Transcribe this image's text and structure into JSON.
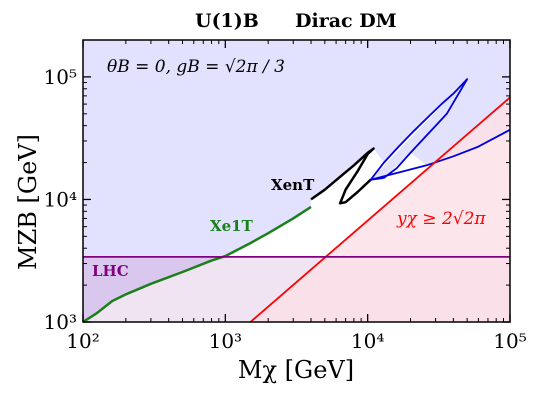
{
  "chart_data": {
    "type": "line",
    "title_left": "U(1)B",
    "title_right": "Dirac DM",
    "xlabel": "Mχ [GeV]",
    "ylabel": "MZB [GeV]",
    "xscale": "log",
    "yscale": "log",
    "xlim": [
      100,
      100000
    ],
    "ylim": [
      1000,
      200000
    ],
    "x_ticks": [
      {
        "value": 100,
        "label": "10²"
      },
      {
        "value": 1000,
        "label": "10³"
      },
      {
        "value": 10000,
        "label": "10⁴"
      },
      {
        "value": 100000,
        "label": "10⁵"
      }
    ],
    "y_ticks": [
      {
        "value": 1000,
        "label": "10³"
      },
      {
        "value": 10000,
        "label": "10⁴"
      },
      {
        "value": 100000,
        "label": "10⁵"
      }
    ],
    "grid": false,
    "annotation_params": "θB = 0,   gB = √2π / 3",
    "colors": {
      "region_blue": "#e2e2fe",
      "region_pink": "#f1e4f2",
      "region_lhc": "#d9c7ee",
      "region_red": "#fbe0e8",
      "line_red": "#ff0000",
      "line_lhc": "#800080",
      "line_green": "#1a801a",
      "line_black": "#000000",
      "line_blue": "#0000dd"
    },
    "regions": [
      {
        "name": "excluded-upper",
        "color": "#e2e2fe"
      },
      {
        "name": "LHC",
        "color": "#d9c7ee"
      },
      {
        "name": "perturbativity",
        "color": "#fbe0e8"
      }
    ],
    "series": [
      {
        "name": "Xe1T",
        "label_value": "Xe1T",
        "color": "#1a801a",
        "x": [
          100,
          125,
          160,
          200,
          300,
          500,
          800,
          1000,
          1500,
          2000,
          3000,
          4000
        ],
        "y": [
          1000,
          1180,
          1480,
          1680,
          2050,
          2560,
          3170,
          3450,
          4400,
          5300,
          7000,
          8700
        ]
      },
      {
        "name": "XenT",
        "label_value": "XenT",
        "color": "#000000",
        "x": [
          4000,
          5000,
          6500,
          8000,
          10000,
          11000,
          10000,
          8500,
          7000,
          6400,
          7000,
          8500,
          10500
        ],
        "y": [
          10000,
          12000,
          15500,
          19000,
          24000,
          26000,
          23500,
          17000,
          12000,
          9300,
          9500,
          11500,
          14500
        ]
      },
      {
        "name": "blue-contour",
        "color": "#0000dd",
        "x": [
          10500,
          13000,
          16500,
          21000,
          27000,
          33000,
          40000,
          50000,
          36000,
          27000,
          20000,
          16000,
          13000,
          10500,
          26000,
          40000,
          60000,
          100000
        ],
        "y": [
          14500,
          20000,
          27000,
          36000,
          48000,
          60000,
          73000,
          96000,
          50000,
          35000,
          24000,
          18000,
          15000,
          14500,
          19000,
          22500,
          27000,
          37000
        ]
      },
      {
        "name": "yχ ≥ 2√2π",
        "label_value": "yχ ≥ 2√2π",
        "color": "#ff0000",
        "x": [
          1500,
          100000
        ],
        "y": [
          1000,
          68000
        ]
      },
      {
        "name": "LHC",
        "label_value": "LHC",
        "color": "#800080",
        "x": [
          100,
          100000
        ],
        "y": [
          3400,
          3400
        ]
      }
    ]
  }
}
